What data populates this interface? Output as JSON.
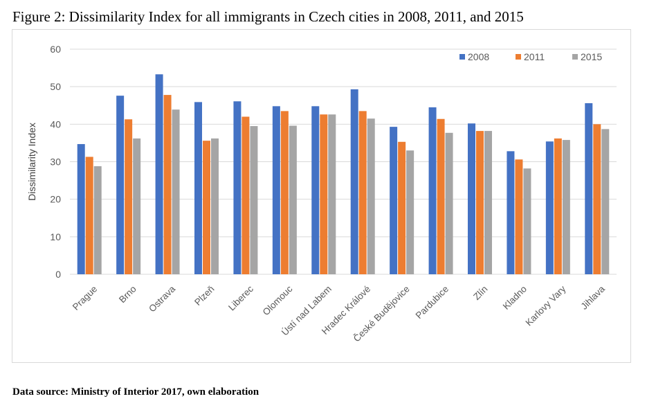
{
  "figure_title": "Figure 2: Dissimilarity Index for all immigrants in Czech cities in 2008, 2011, and 2015",
  "source_note": "Data source: Ministry of Interior 2017, own elaboration",
  "chart_data": {
    "type": "bar",
    "title": "",
    "xlabel": "",
    "ylabel": "Dissimilarity Index",
    "ylim": [
      0,
      60
    ],
    "yticks": [
      0,
      10,
      20,
      30,
      40,
      50,
      60
    ],
    "grid": true,
    "legend_position": "top-right",
    "categories": [
      "Prague",
      "Brno",
      "Ostrava",
      "Plzeň",
      "Liberec",
      "Olomouc",
      "Ústí nad Labem",
      "Hradec Králové",
      "České Budějovice",
      "Pardubice",
      "Zlín",
      "Kladno",
      "Karlovy Vary",
      "Jihlava"
    ],
    "series": [
      {
        "name": "2008",
        "color": "#4472c4",
        "values": [
          34.7,
          47.6,
          53.3,
          45.9,
          46.1,
          44.8,
          44.8,
          49.3,
          39.3,
          44.5,
          40.2,
          32.8,
          35.4,
          45.6
        ]
      },
      {
        "name": "2011",
        "color": "#ed7d31",
        "values": [
          31.3,
          41.3,
          47.8,
          35.6,
          42.0,
          43.5,
          42.6,
          43.5,
          35.3,
          41.4,
          38.2,
          30.6,
          36.2,
          40.0
        ]
      },
      {
        "name": "2015",
        "color": "#a5a5a5",
        "values": [
          28.8,
          36.2,
          43.9,
          36.2,
          39.5,
          39.6,
          42.6,
          41.5,
          33.0,
          37.7,
          38.2,
          28.2,
          35.8,
          38.7
        ]
      }
    ]
  }
}
